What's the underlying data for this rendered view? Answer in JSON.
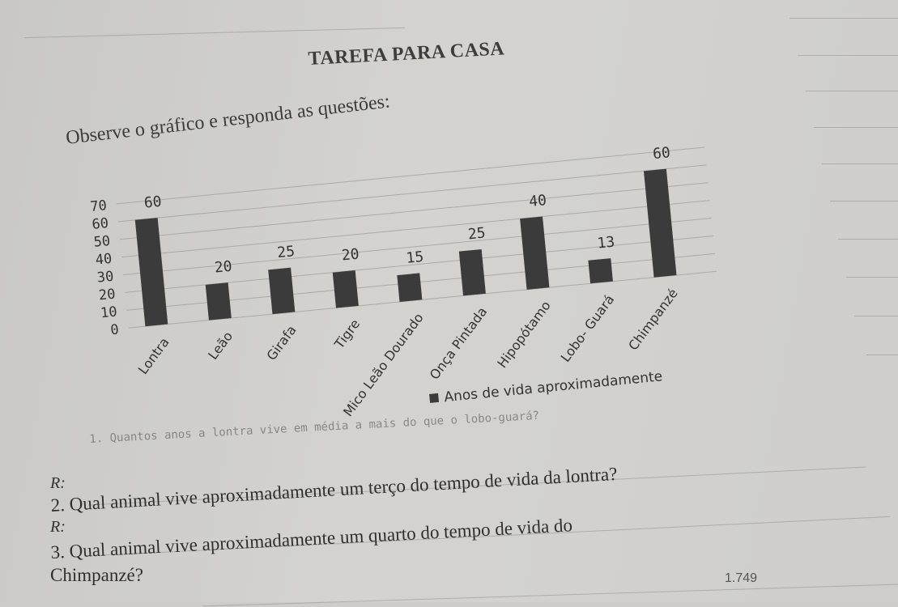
{
  "header": {
    "title": "TAREFA PARA CASA"
  },
  "instruction": "Observe o gráfico e responda as questões:",
  "chart_data": {
    "type": "bar",
    "categories": [
      "Lontra",
      "Leão",
      "Girafa",
      "Tigre",
      "Mico Leão Dourado",
      "Onça Pintada",
      "Hipopótamo",
      "Lobo- Guará",
      "Chimpanzé"
    ],
    "values": [
      60,
      20,
      25,
      20,
      15,
      25,
      40,
      13,
      60
    ],
    "data_labels": [
      "60",
      "20",
      "25",
      "20",
      "15",
      "25",
      "40",
      "13",
      "60"
    ],
    "y_ticks": [
      "0",
      "10",
      "20",
      "30",
      "40",
      "50",
      "60",
      "70"
    ],
    "ylim": [
      0,
      70
    ],
    "legend": "Anos de vida aproximadamente",
    "legend_position": "bottom",
    "bar_color": "#3b3b3b",
    "grid": true
  },
  "questions": {
    "q1_faded": "1. Quantos anos a lontra vive em média a mais do que o lobo-guará?",
    "r1": "R:",
    "q2": "2. Qual animal vive aproximadamente um terço do tempo de vida da lontra?",
    "r2": "R:",
    "q3_line1": "3. Qual animal vive aproximadamente um quarto do tempo de vida do",
    "q3_line2": "Chimpanzé?"
  },
  "page_number": "1.749"
}
